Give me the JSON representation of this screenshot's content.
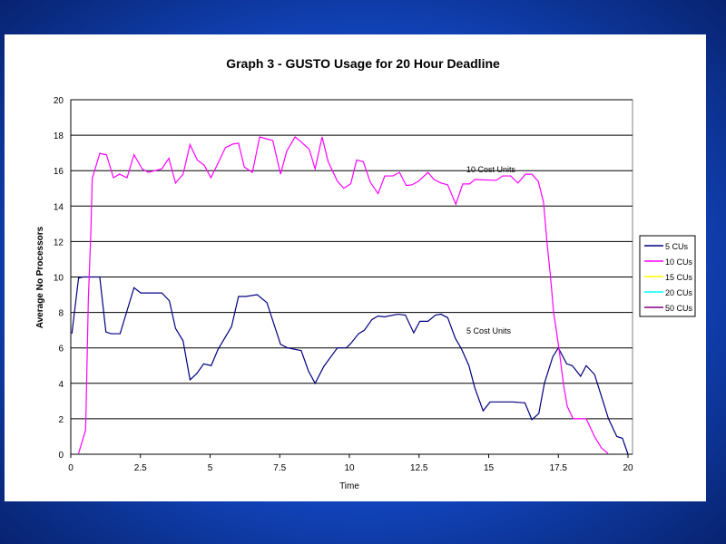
{
  "chart_data": {
    "type": "line",
    "title": "Graph 3 - GUSTO Usage for 20 Hour Deadline",
    "xlabel": "Time",
    "ylabel": "Average No Processors",
    "xlim": [
      0,
      20
    ],
    "ylim": [
      0,
      20
    ],
    "xticks": [
      "0",
      "2.5",
      "5",
      "7.5",
      "10",
      "12.5",
      "15",
      "17.5",
      "20"
    ],
    "xtick_values": [
      0,
      2.5,
      5,
      7.5,
      10,
      12.5,
      15,
      17.5,
      20
    ],
    "yticks": [
      "0",
      "2",
      "4",
      "6",
      "8",
      "10",
      "12",
      "14",
      "16",
      "18",
      "20"
    ],
    "ytick_values": [
      0,
      2,
      4,
      6,
      8,
      10,
      12,
      14,
      16,
      18,
      20
    ],
    "grid": "horizontal",
    "legend_position": "right",
    "annotations": [
      {
        "text": "10 Cost Units",
        "x": 14.2,
        "y": 16.1
      },
      {
        "text": "5 Cost Units",
        "x": 14.2,
        "y": 7.0
      }
    ],
    "series": [
      {
        "name": "5 CUs",
        "color": "#000080",
        "points": [
          [
            0.04,
            6.8
          ],
          [
            0.28,
            9.95
          ],
          [
            0.44,
            10
          ],
          [
            1.04,
            10
          ],
          [
            1.26,
            6.9
          ],
          [
            1.45,
            6.8
          ],
          [
            1.77,
            6.8
          ],
          [
            2.27,
            9.4
          ],
          [
            2.51,
            9.1
          ],
          [
            3.27,
            9.1
          ],
          [
            3.54,
            8.65
          ],
          [
            3.76,
            7.1
          ],
          [
            4.03,
            6.4
          ],
          [
            4.28,
            4.2
          ],
          [
            4.52,
            4.55
          ],
          [
            4.77,
            5.1
          ],
          [
            5.04,
            5.0
          ],
          [
            5.28,
            5.9
          ],
          [
            5.77,
            7.2
          ],
          [
            6.02,
            8.9
          ],
          [
            6.28,
            8.9
          ],
          [
            6.69,
            9.0
          ],
          [
            7.04,
            8.55
          ],
          [
            7.53,
            6.2
          ],
          [
            7.78,
            6.0
          ],
          [
            8.27,
            5.85
          ],
          [
            8.53,
            4.7
          ],
          [
            8.77,
            4.0
          ],
          [
            9.08,
            4.95
          ],
          [
            9.57,
            6.0
          ],
          [
            9.89,
            6.0
          ],
          [
            10.05,
            6.25
          ],
          [
            10.33,
            6.8
          ],
          [
            10.54,
            7.0
          ],
          [
            10.81,
            7.6
          ],
          [
            11.03,
            7.8
          ],
          [
            11.25,
            7.75
          ],
          [
            11.74,
            7.9
          ],
          [
            12.01,
            7.85
          ],
          [
            12.31,
            6.85
          ],
          [
            12.53,
            7.5
          ],
          [
            12.82,
            7.5
          ],
          [
            13.09,
            7.85
          ],
          [
            13.29,
            7.9
          ],
          [
            13.53,
            7.7
          ],
          [
            13.8,
            6.55
          ],
          [
            14.02,
            5.95
          ],
          [
            14.29,
            5.0
          ],
          [
            14.5,
            3.75
          ],
          [
            14.8,
            2.45
          ],
          [
            15.05,
            2.95
          ],
          [
            15.85,
            2.95
          ],
          [
            16.3,
            2.9
          ],
          [
            16.55,
            1.95
          ],
          [
            16.8,
            2.3
          ],
          [
            17.0,
            4.0
          ],
          [
            17.3,
            5.5
          ],
          [
            17.5,
            6.0
          ],
          [
            17.8,
            5.1
          ],
          [
            18.0,
            5.0
          ],
          [
            18.3,
            4.4
          ],
          [
            18.5,
            5.0
          ],
          [
            18.8,
            4.5
          ],
          [
            19.0,
            3.5
          ],
          [
            19.3,
            2.0
          ],
          [
            19.6,
            1.0
          ],
          [
            19.8,
            0.9
          ],
          [
            20.0,
            0
          ]
        ]
      },
      {
        "name": "10 CUs",
        "color": "#ff00ff",
        "points": [
          [
            0.28,
            0.05
          ],
          [
            0.53,
            1.36
          ],
          [
            0.55,
            2.6
          ],
          [
            0.63,
            8.75
          ],
          [
            0.72,
            12.5
          ],
          [
            0.77,
            15.56
          ],
          [
            1.04,
            16.97
          ],
          [
            1.28,
            16.9
          ],
          [
            1.53,
            15.6
          ],
          [
            1.75,
            15.8
          ],
          [
            2.02,
            15.6
          ],
          [
            2.27,
            16.9
          ],
          [
            2.56,
            16.1
          ],
          [
            2.78,
            15.9
          ],
          [
            3.27,
            16.1
          ],
          [
            3.52,
            16.7
          ],
          [
            3.76,
            15.3
          ],
          [
            4.03,
            15.8
          ],
          [
            4.28,
            17.47
          ],
          [
            4.54,
            16.6
          ],
          [
            4.79,
            16.3
          ],
          [
            5.03,
            15.6
          ],
          [
            5.28,
            16.4
          ],
          [
            5.55,
            17.3
          ],
          [
            5.82,
            17.5
          ],
          [
            6.02,
            17.55
          ],
          [
            6.23,
            16.2
          ],
          [
            6.52,
            15.9
          ],
          [
            6.78,
            17.9
          ],
          [
            7.01,
            17.8
          ],
          [
            7.25,
            17.7
          ],
          [
            7.53,
            15.8
          ],
          [
            7.75,
            17.1
          ],
          [
            8.05,
            17.9
          ],
          [
            8.21,
            17.7
          ],
          [
            8.56,
            17.2
          ],
          [
            8.77,
            16.1
          ],
          [
            9.02,
            17.9
          ],
          [
            9.24,
            16.5
          ],
          [
            9.57,
            15.4
          ],
          [
            9.8,
            15.0
          ],
          [
            10.05,
            15.26
          ],
          [
            10.26,
            16.6
          ],
          [
            10.5,
            16.5
          ],
          [
            10.75,
            15.35
          ],
          [
            11.03,
            14.7
          ],
          [
            11.27,
            15.7
          ],
          [
            11.56,
            15.7
          ],
          [
            11.8,
            15.9
          ],
          [
            12.04,
            15.16
          ],
          [
            12.25,
            15.2
          ],
          [
            12.48,
            15.4
          ],
          [
            12.82,
            15.9
          ],
          [
            13.04,
            15.5
          ],
          [
            13.29,
            15.3
          ],
          [
            13.53,
            15.2
          ],
          [
            13.82,
            14.1
          ],
          [
            14.07,
            15.25
          ],
          [
            14.32,
            15.25
          ],
          [
            14.5,
            15.5
          ],
          [
            15.27,
            15.45
          ],
          [
            15.5,
            15.7
          ],
          [
            15.79,
            15.7
          ],
          [
            16.05,
            15.3
          ],
          [
            16.32,
            15.8
          ],
          [
            16.55,
            15.8
          ],
          [
            16.78,
            15.4
          ],
          [
            16.97,
            14.2
          ],
          [
            17.09,
            12.0
          ],
          [
            17.22,
            10.0
          ],
          [
            17.33,
            8.0
          ],
          [
            17.52,
            6.0
          ],
          [
            17.68,
            4.0
          ],
          [
            17.82,
            2.7
          ],
          [
            18.03,
            2.0
          ],
          [
            18.5,
            2.0
          ],
          [
            18.8,
            1.0
          ],
          [
            19.05,
            0.35
          ],
          [
            19.28,
            0.05
          ]
        ]
      },
      {
        "name": "15 CUs",
        "color": "#ffff00",
        "points": []
      },
      {
        "name": "20 CUs",
        "color": "#00ffff",
        "points": []
      },
      {
        "name": "50 CUs",
        "color": "#800080",
        "points": []
      }
    ]
  }
}
